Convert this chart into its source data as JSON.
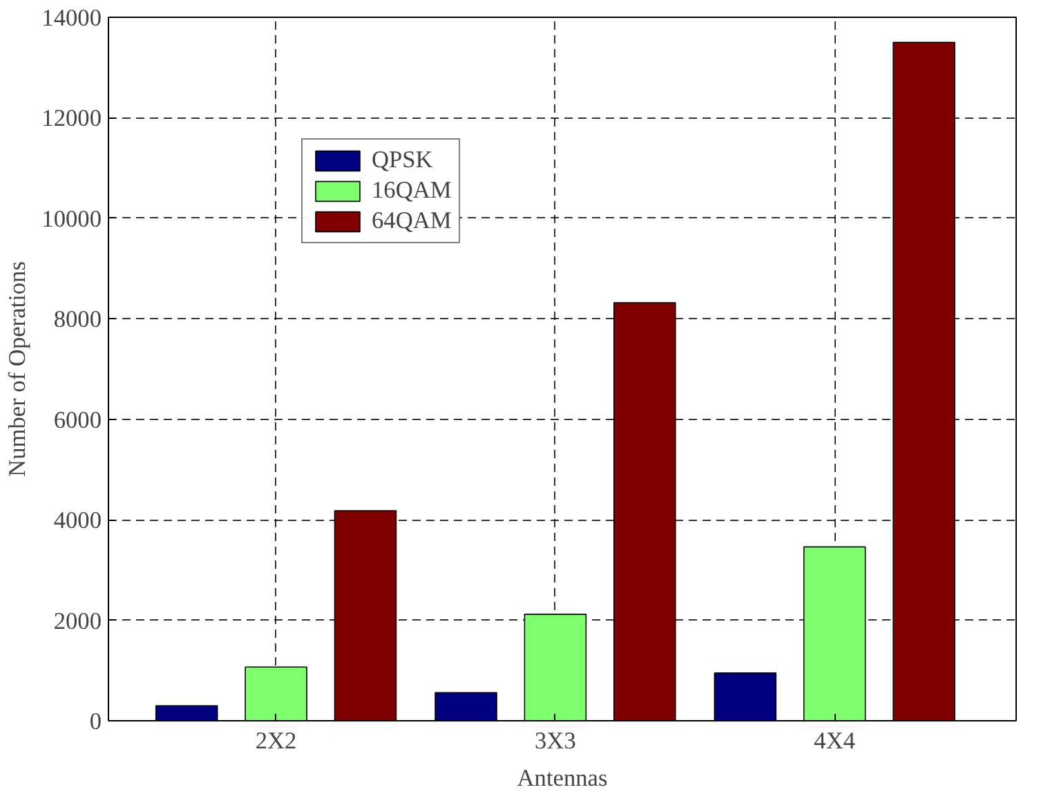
{
  "chart_data": {
    "type": "bar",
    "xlabel": "Antennas",
    "ylabel": "Number of Operations",
    "categories": [
      "2X2",
      "3X3",
      "4X4"
    ],
    "series": [
      {
        "name": "QPSK",
        "color": "#000080",
        "values": [
          300,
          560,
          950
        ]
      },
      {
        "name": "16QAM",
        "color": "#80ff6e",
        "values": [
          1070,
          2120,
          3460
        ]
      },
      {
        "name": "64QAM",
        "color": "#800000",
        "values": [
          4180,
          8320,
          13500
        ]
      }
    ],
    "ylim": [
      0,
      14000
    ],
    "yticks": [
      0,
      2000,
      4000,
      6000,
      8000,
      10000,
      12000,
      14000
    ],
    "grid": true,
    "legend": "top left"
  }
}
